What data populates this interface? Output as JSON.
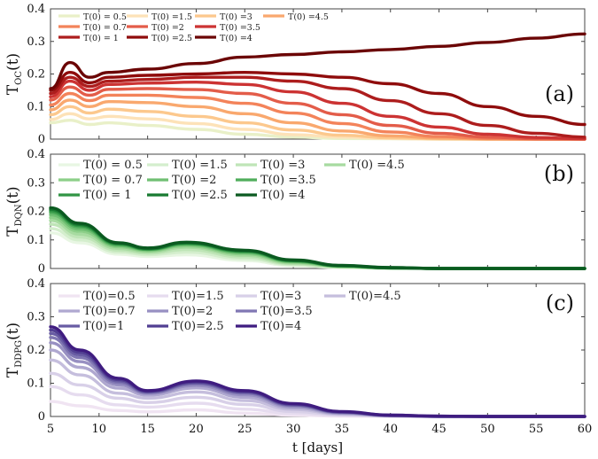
{
  "chart_data": [
    {
      "type": "line",
      "panel_label": "(a)",
      "ylabel_main": "T",
      "ylabel_sub": "OC",
      "ylabel_suffix": "(t)",
      "ylim": [
        0,
        0.4
      ],
      "yticks": [
        "0",
        "0.1",
        "0.2",
        "0.3",
        "0.4"
      ],
      "colors": [
        "#e9f0c8",
        "#fde2b8",
        "#fcc88d",
        "#f9a86e",
        "#f3835a",
        "#e35c49",
        "#cc3333",
        "#ad1d1d",
        "#8f0c0c",
        "#6b0505"
      ],
      "series": [
        {
          "name": "T(0) = 0.5",
          "x": [
            5,
            7,
            9,
            11,
            15,
            20,
            25,
            30,
            35,
            40,
            45,
            50,
            55,
            60
          ],
          "values": [
            0.05,
            0.058,
            0.045,
            0.05,
            0.042,
            0.03,
            0.015,
            0.006,
            0.002,
            0.001,
            0,
            0,
            0,
            0
          ]
        },
        {
          "name": "T(0) =1.5",
          "x": [
            5,
            7,
            9,
            11,
            15,
            20,
            25,
            30,
            35,
            40,
            45,
            50,
            55,
            60
          ],
          "values": [
            0.06,
            0.078,
            0.062,
            0.07,
            0.062,
            0.048,
            0.03,
            0.014,
            0.006,
            0.002,
            0,
            0,
            0,
            0
          ]
        },
        {
          "name": "T(0) =3",
          "x": [
            5,
            7,
            9,
            11,
            15,
            20,
            25,
            30,
            35,
            40,
            45,
            50,
            55,
            60
          ],
          "values": [
            0.075,
            0.1,
            0.08,
            0.092,
            0.085,
            0.07,
            0.05,
            0.028,
            0.012,
            0.004,
            0.001,
            0,
            0,
            0
          ]
        },
        {
          "name": "T(0) =4.5",
          "x": [
            5,
            7,
            9,
            11,
            15,
            20,
            25,
            30,
            35,
            40,
            45,
            50,
            55,
            60
          ],
          "values": [
            0.09,
            0.12,
            0.1,
            0.115,
            0.112,
            0.1,
            0.078,
            0.05,
            0.025,
            0.01,
            0.003,
            0,
            0,
            0
          ]
        },
        {
          "name": "T(0) = 0.7",
          "x": [
            5,
            7,
            9,
            11,
            15,
            20,
            25,
            30,
            35,
            40,
            45,
            50,
            55,
            60
          ],
          "values": [
            0.105,
            0.14,
            0.118,
            0.135,
            0.135,
            0.128,
            0.11,
            0.08,
            0.048,
            0.022,
            0.008,
            0.002,
            0,
            0
          ]
        },
        {
          "name": "T(0) =2",
          "x": [
            5,
            7,
            9,
            11,
            15,
            20,
            25,
            30,
            35,
            40,
            45,
            50,
            55,
            60
          ],
          "values": [
            0.12,
            0.16,
            0.135,
            0.153,
            0.155,
            0.152,
            0.14,
            0.11,
            0.075,
            0.042,
            0.018,
            0.006,
            0.001,
            0
          ]
        },
        {
          "name": "T(0) =3.5",
          "x": [
            5,
            7,
            9,
            11,
            15,
            20,
            25,
            30,
            35,
            40,
            45,
            50,
            55,
            60
          ],
          "values": [
            0.13,
            0.178,
            0.15,
            0.168,
            0.172,
            0.175,
            0.168,
            0.145,
            0.11,
            0.07,
            0.037,
            0.015,
            0.005,
            0.001
          ]
        },
        {
          "name": "T(0) = 1",
          "x": [
            5,
            7,
            9,
            11,
            15,
            20,
            25,
            30,
            35,
            40,
            45,
            50,
            55,
            60
          ],
          "values": [
            0.14,
            0.19,
            0.162,
            0.178,
            0.183,
            0.19,
            0.19,
            0.178,
            0.155,
            0.118,
            0.078,
            0.042,
            0.018,
            0.006
          ]
        },
        {
          "name": "T(0) =2.5",
          "x": [
            5,
            7,
            9,
            11,
            15,
            20,
            25,
            30,
            35,
            40,
            45,
            50,
            55,
            60
          ],
          "values": [
            0.15,
            0.205,
            0.173,
            0.19,
            0.196,
            0.2,
            0.205,
            0.2,
            0.19,
            0.17,
            0.14,
            0.1,
            0.07,
            0.045
          ]
        },
        {
          "name": "T(0) =4",
          "x": [
            5,
            7,
            9,
            11,
            15,
            20,
            25,
            30,
            35,
            40,
            45,
            50,
            55,
            60
          ],
          "values": [
            0.155,
            0.235,
            0.19,
            0.205,
            0.215,
            0.232,
            0.252,
            0.26,
            0.268,
            0.275,
            0.285,
            0.297,
            0.31,
            0.323
          ]
        }
      ],
      "legend_order": [
        "T(0) = 0.5",
        "T(0) =1.5",
        "T(0) =3",
        "T(0) =4.5",
        "T(0) = 0.7",
        "T(0) =2",
        "T(0) =3.5",
        "T(0) = 1",
        "T(0) =2.5",
        "T(0) =4"
      ]
    },
    {
      "type": "line",
      "panel_label": "(b)",
      "ylabel_main": "T",
      "ylabel_sub": "DQN",
      "ylabel_suffix": "(t)",
      "ylim": [
        0,
        0.4
      ],
      "yticks": [
        "0",
        "0.1",
        "0.2",
        "0.3",
        "0.4"
      ],
      "colors": [
        "#e8f6e3",
        "#d4eecd",
        "#bfe5b7",
        "#a7dba0",
        "#8ccf88",
        "#6fbf72",
        "#4fad5b",
        "#319544",
        "#187a31",
        "#0a5a20"
      ],
      "series": [
        {
          "name": "T(0) = 0.5",
          "x": [
            5,
            8,
            12,
            15,
            19,
            25,
            30,
            35,
            40,
            45,
            50,
            55,
            60
          ],
          "values": [
            0.125,
            0.09,
            0.05,
            0.042,
            0.048,
            0.028,
            0.01,
            0.003,
            0.001,
            0,
            0,
            0,
            0
          ]
        },
        {
          "name": "T(0) =1.5",
          "x": [
            5,
            8,
            12,
            15,
            19,
            25,
            30,
            35,
            40,
            45,
            50,
            55,
            60
          ],
          "values": [
            0.14,
            0.1,
            0.057,
            0.048,
            0.057,
            0.034,
            0.013,
            0.004,
            0.001,
            0,
            0,
            0,
            0
          ]
        },
        {
          "name": "T(0) =3",
          "x": [
            5,
            8,
            12,
            15,
            19,
            25,
            30,
            35,
            40,
            45,
            50,
            55,
            60
          ],
          "values": [
            0.155,
            0.11,
            0.064,
            0.053,
            0.066,
            0.04,
            0.016,
            0.005,
            0.001,
            0,
            0,
            0,
            0
          ]
        },
        {
          "name": "T(0) =4.5",
          "x": [
            5,
            8,
            12,
            15,
            19,
            25,
            30,
            35,
            40,
            45,
            50,
            55,
            60
          ],
          "values": [
            0.168,
            0.12,
            0.07,
            0.058,
            0.074,
            0.046,
            0.019,
            0.006,
            0.002,
            0,
            0,
            0,
            0
          ]
        },
        {
          "name": "T(0) = 0.7",
          "x": [
            5,
            8,
            12,
            15,
            19,
            25,
            30,
            35,
            40,
            45,
            50,
            55,
            60
          ],
          "values": [
            0.178,
            0.13,
            0.076,
            0.062,
            0.079,
            0.051,
            0.022,
            0.007,
            0.002,
            0,
            0,
            0,
            0
          ]
        },
        {
          "name": "T(0) =2",
          "x": [
            5,
            8,
            12,
            15,
            19,
            25,
            30,
            35,
            40,
            45,
            50,
            55,
            60
          ],
          "values": [
            0.188,
            0.138,
            0.08,
            0.065,
            0.083,
            0.055,
            0.024,
            0.008,
            0.002,
            0,
            0,
            0,
            0
          ]
        },
        {
          "name": "T(0) =3.5",
          "x": [
            5,
            8,
            12,
            15,
            19,
            25,
            30,
            35,
            40,
            45,
            50,
            55,
            60
          ],
          "values": [
            0.196,
            0.145,
            0.083,
            0.067,
            0.086,
            0.058,
            0.026,
            0.009,
            0.002,
            0,
            0,
            0,
            0
          ]
        },
        {
          "name": "T(0) = 1",
          "x": [
            5,
            8,
            12,
            15,
            19,
            25,
            30,
            35,
            40,
            45,
            50,
            55,
            60
          ],
          "values": [
            0.202,
            0.15,
            0.086,
            0.068,
            0.088,
            0.06,
            0.027,
            0.009,
            0.002,
            0,
            0,
            0,
            0
          ]
        },
        {
          "name": "T(0) =2.5",
          "x": [
            5,
            8,
            12,
            15,
            19,
            25,
            30,
            35,
            40,
            45,
            50,
            55,
            60
          ],
          "values": [
            0.207,
            0.154,
            0.088,
            0.07,
            0.09,
            0.062,
            0.028,
            0.01,
            0.003,
            0,
            0,
            0,
            0
          ]
        },
        {
          "name": "T(0) =4",
          "x": [
            5,
            8,
            12,
            15,
            19,
            25,
            30,
            35,
            40,
            45,
            50,
            55,
            60
          ],
          "values": [
            0.212,
            0.158,
            0.09,
            0.072,
            0.092,
            0.064,
            0.03,
            0.011,
            0.003,
            0,
            0,
            0,
            0
          ]
        }
      ],
      "legend_order": [
        "T(0) = 0.5",
        "T(0) =1.5",
        "T(0) =3",
        "T(0) =4.5",
        "T(0) = 0.7",
        "T(0) =2",
        "T(0) =3.5",
        "T(0) = 1",
        "T(0) =2.5",
        "T(0) =4"
      ]
    },
    {
      "type": "line",
      "panel_label": "(c)",
      "ylabel_main": "T",
      "ylabel_sub": "DDPG",
      "ylabel_suffix": "(t)",
      "ylim": [
        0,
        0.4
      ],
      "yticks": [
        "0",
        "0.1",
        "0.2",
        "0.3",
        "0.4"
      ],
      "xlabel": "t [days]",
      "xlim": [
        5,
        60
      ],
      "xticks": [
        "5",
        "10",
        "15",
        "20",
        "25",
        "30",
        "35",
        "40",
        "45",
        "50",
        "55",
        "60"
      ],
      "colors": [
        "#f0e4f2",
        "#e6dcef",
        "#d8d0e8",
        "#c5bedd",
        "#afa8d0",
        "#9890c2",
        "#8077b3",
        "#685ca3",
        "#513f92",
        "#3f1c80"
      ],
      "series": [
        {
          "name": "T(0)=0.5",
          "x": [
            5,
            8,
            12,
            15,
            20,
            25,
            30,
            35,
            40,
            45,
            50,
            55,
            60
          ],
          "values": [
            0.045,
            0.032,
            0.018,
            0.014,
            0.02,
            0.01,
            0.004,
            0.001,
            0,
            0,
            0,
            0,
            0
          ]
        },
        {
          "name": "T(0)=1.5",
          "x": [
            5,
            8,
            12,
            15,
            20,
            25,
            30,
            35,
            40,
            45,
            50,
            55,
            60
          ],
          "values": [
            0.09,
            0.065,
            0.035,
            0.028,
            0.04,
            0.022,
            0.009,
            0.003,
            0.001,
            0,
            0,
            0,
            0
          ]
        },
        {
          "name": "T(0)=3",
          "x": [
            5,
            8,
            12,
            15,
            20,
            25,
            30,
            35,
            40,
            45,
            50,
            55,
            60
          ],
          "values": [
            0.13,
            0.095,
            0.055,
            0.042,
            0.058,
            0.036,
            0.015,
            0.005,
            0.001,
            0,
            0,
            0,
            0
          ]
        },
        {
          "name": "T(0)=4.5",
          "x": [
            5,
            8,
            12,
            15,
            20,
            25,
            30,
            35,
            40,
            45,
            50,
            55,
            60
          ],
          "values": [
            0.17,
            0.125,
            0.07,
            0.055,
            0.074,
            0.048,
            0.021,
            0.007,
            0.002,
            0,
            0,
            0,
            0
          ]
        },
        {
          "name": "T(0)=0.7",
          "x": [
            5,
            8,
            12,
            15,
            20,
            25,
            30,
            35,
            40,
            45,
            50,
            55,
            60
          ],
          "values": [
            0.2,
            0.148,
            0.085,
            0.064,
            0.086,
            0.058,
            0.026,
            0.009,
            0.002,
            0,
            0,
            0,
            0
          ]
        },
        {
          "name": "T(0)=2",
          "x": [
            5,
            8,
            12,
            15,
            20,
            25,
            30,
            35,
            40,
            45,
            50,
            55,
            60
          ],
          "values": [
            0.222,
            0.165,
            0.095,
            0.069,
            0.093,
            0.065,
            0.03,
            0.011,
            0.003,
            0,
            0,
            0,
            0
          ]
        },
        {
          "name": "T(0)=3.5",
          "x": [
            5,
            8,
            12,
            15,
            20,
            25,
            30,
            35,
            40,
            45,
            50,
            55,
            60
          ],
          "values": [
            0.238,
            0.177,
            0.102,
            0.072,
            0.098,
            0.07,
            0.033,
            0.012,
            0.003,
            0,
            0,
            0,
            0
          ]
        },
        {
          "name": "T(0)=1",
          "x": [
            5,
            8,
            12,
            15,
            20,
            25,
            30,
            35,
            40,
            45,
            50,
            55,
            60
          ],
          "values": [
            0.25,
            0.186,
            0.107,
            0.074,
            0.101,
            0.073,
            0.035,
            0.013,
            0.003,
            0,
            0,
            0,
            0
          ]
        },
        {
          "name": "T(0)=2.5",
          "x": [
            5,
            8,
            12,
            15,
            20,
            25,
            30,
            35,
            40,
            45,
            50,
            55,
            60
          ],
          "values": [
            0.26,
            0.193,
            0.111,
            0.076,
            0.104,
            0.075,
            0.037,
            0.014,
            0.004,
            0.001,
            0,
            0,
            0
          ]
        },
        {
          "name": "T(0)=4",
          "x": [
            5,
            8,
            12,
            15,
            20,
            25,
            30,
            35,
            40,
            45,
            50,
            55,
            60
          ],
          "values": [
            0.27,
            0.2,
            0.115,
            0.078,
            0.107,
            0.078,
            0.039,
            0.015,
            0.004,
            0.001,
            0,
            0,
            0
          ]
        }
      ],
      "legend_order": [
        "T(0)=0.5",
        "T(0)=1.5",
        "T(0)=3",
        "T(0)=4.5",
        "T(0)=0.7",
        "T(0)=2",
        "T(0)=3.5",
        "T(0)=1",
        "T(0)=2.5",
        "T(0)=4"
      ]
    }
  ]
}
